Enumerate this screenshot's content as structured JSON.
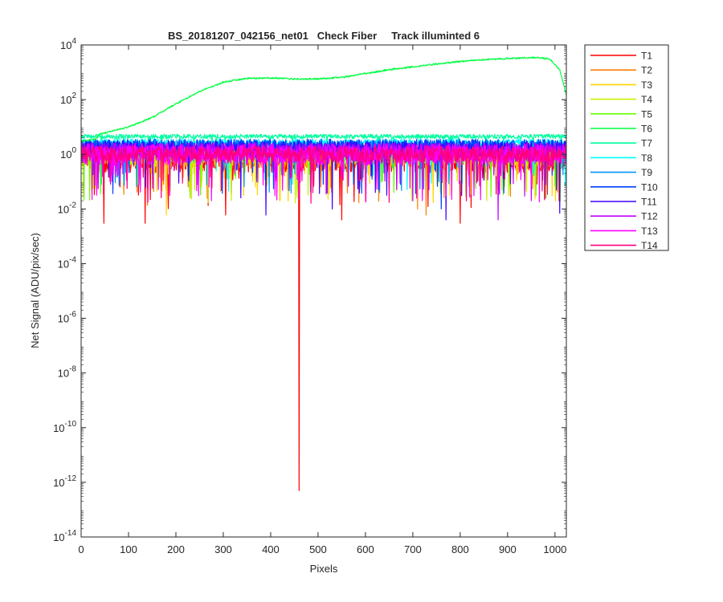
{
  "chart_data": {
    "type": "line",
    "title": "BS_20181207_042156_net01   Check Fiber     Track illuminted 6",
    "xlabel": "Pixels",
    "ylabel": "Net Signal (ADU/pix/sec)",
    "xlim": [
      0,
      1024
    ],
    "ylim": [
      1e-14,
      10000.0
    ],
    "yscale": "log",
    "grid": false,
    "legend_position": "outside-top-right",
    "x_ticks": [
      "0",
      "100",
      "200",
      "300",
      "400",
      "500",
      "600",
      "700",
      "800",
      "900",
      "1000"
    ],
    "y_ticks": [
      {
        "exp": -14,
        "label_base": "10",
        "label_exp": "-14"
      },
      {
        "exp": -12,
        "label_base": "10",
        "label_exp": "-12"
      },
      {
        "exp": -10,
        "label_base": "10",
        "label_exp": "-10"
      },
      {
        "exp": -8,
        "label_base": "10",
        "label_exp": "-8"
      },
      {
        "exp": -6,
        "label_base": "10",
        "label_exp": "-6"
      },
      {
        "exp": -4,
        "label_base": "10",
        "label_exp": "-4"
      },
      {
        "exp": -2,
        "label_base": "10",
        "label_exp": "-2"
      },
      {
        "exp": 0,
        "label_base": "10",
        "label_exp": "0"
      },
      {
        "exp": 2,
        "label_base": "10",
        "label_exp": "2"
      },
      {
        "exp": 4,
        "label_base": "10",
        "label_exp": "4"
      }
    ],
    "series": [
      {
        "name": "T1",
        "color": "#ff0000",
        "baseline": 0.6,
        "noise_decades": 0.45,
        "dips": [
          [
            48,
            0.003
          ],
          [
            135,
            0.003
          ],
          [
            305,
            0.006
          ],
          [
            460,
            5e-13
          ],
          [
            550,
            0.004
          ],
          [
            800,
            0.003
          ]
        ]
      },
      {
        "name": "T2",
        "color": "#ff7f00",
        "baseline": 0.8,
        "noise_decades": 0.4,
        "dips": [
          [
            710,
            0.01
          ],
          [
            728,
            0.006
          ],
          [
            600,
            0.02
          ]
        ]
      },
      {
        "name": "T3",
        "color": "#ffd400",
        "baseline": 0.9,
        "noise_decades": 0.4,
        "dips": [
          [
            180,
            0.006
          ],
          [
            420,
            0.02
          ],
          [
            5,
            0.03
          ]
        ]
      },
      {
        "name": "T4",
        "color": "#c8f000",
        "baseline": 1.0,
        "noise_decades": 0.35,
        "dips": [
          [
            240,
            0.05
          ]
        ]
      },
      {
        "name": "T5",
        "color": "#66ff00",
        "baseline": 1.1,
        "noise_decades": 0.35,
        "dips": [
          [
            120,
            0.08
          ]
        ]
      },
      {
        "name": "T6",
        "color": "#00ff40",
        "illuminated": true,
        "curve": [
          [
            0,
            3.0
          ],
          [
            30,
            3.5
          ],
          [
            40,
            5.5
          ],
          [
            100,
            10
          ],
          [
            150,
            22
          ],
          [
            200,
            70
          ],
          [
            250,
            200
          ],
          [
            300,
            430
          ],
          [
            350,
            600
          ],
          [
            400,
            620
          ],
          [
            450,
            570
          ],
          [
            500,
            570
          ],
          [
            550,
            650
          ],
          [
            600,
            900
          ],
          [
            650,
            1250
          ],
          [
            700,
            1600
          ],
          [
            750,
            2000
          ],
          [
            800,
            2500
          ],
          [
            850,
            2900
          ],
          [
            900,
            3200
          ],
          [
            960,
            3500
          ],
          [
            990,
            3000
          ],
          [
            1010,
            1200
          ],
          [
            1024,
            150
          ]
        ]
      },
      {
        "name": "T7",
        "color": "#00ffa0",
        "baseline": 4.5,
        "noise_decades": 0.08,
        "dips": []
      },
      {
        "name": "T8",
        "color": "#00ffff",
        "baseline": 2.6,
        "noise_decades": 0.15,
        "dips": []
      },
      {
        "name": "T9",
        "color": "#0096ff",
        "baseline": 2.0,
        "noise_decades": 0.2,
        "dips": [
          [
            630,
            0.04
          ]
        ]
      },
      {
        "name": "T10",
        "color": "#0040ff",
        "baseline": 2.0,
        "noise_decades": 0.25,
        "dips": [
          [
            760,
            0.01
          ]
        ]
      },
      {
        "name": "T11",
        "color": "#4000ff",
        "baseline": 1.5,
        "noise_decades": 0.3,
        "dips": [
          [
            390,
            0.006
          ],
          [
            530,
            0.01
          ],
          [
            770,
            0.004
          ],
          [
            1010,
            0.007
          ]
        ]
      },
      {
        "name": "T12",
        "color": "#c000ff",
        "baseline": 1.2,
        "noise_decades": 0.35,
        "dips": [
          [
            700,
            0.02
          ],
          [
            880,
            0.004
          ],
          [
            950,
            0.02
          ]
        ]
      },
      {
        "name": "T13",
        "color": "#ff00ff",
        "baseline": 1.0,
        "noise_decades": 0.4,
        "dips": [
          [
            275,
            0.02
          ],
          [
            770,
            0.03
          ]
        ]
      },
      {
        "name": "T14",
        "color": "#ff0080",
        "baseline": 1.0,
        "noise_decades": 0.3,
        "dips": []
      }
    ]
  }
}
